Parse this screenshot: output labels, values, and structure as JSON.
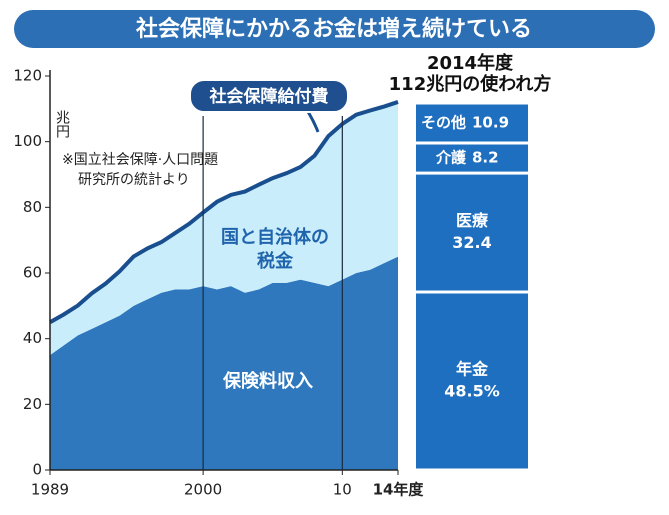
{
  "chart_data": [
    {
      "type": "stacked_area",
      "title": "社会保障にかかるお金は増え続けている",
      "y_label": "兆円",
      "annotation": "社会保障給付費",
      "note": [
        "※国立社会保障·人口問題",
        "研究所の統計より"
      ],
      "x": [
        1989,
        1990,
        1991,
        1992,
        1993,
        1994,
        1995,
        1996,
        1997,
        1998,
        1999,
        2000,
        2001,
        2002,
        2003,
        2004,
        2005,
        2006,
        2007,
        2008,
        2009,
        2010,
        2011,
        2012,
        2013,
        2014
      ],
      "series": [
        {
          "name": "保険料収入",
          "color": "#2f78bd",
          "values": [
            35,
            38,
            41,
            43,
            45,
            47,
            50,
            52,
            54,
            55,
            55,
            56,
            55,
            56,
            54,
            55,
            57,
            57,
            58,
            57,
            56,
            58,
            60,
            61,
            63,
            65
          ]
        },
        {
          "name": [
            "国と自治体の",
            "税金"
          ],
          "color": "#c9edfa",
          "values": [
            10,
            9.4,
            9.1,
            10.8,
            11.8,
            13.5,
            15,
            15.5,
            15.4,
            17.2,
            20,
            22.4,
            26.7,
            27.8,
            30.8,
            31.9,
            31.9,
            33.4,
            34.3,
            38.7,
            45.7,
            47.4,
            48.2,
            48.5,
            47.7,
            47.1
          ]
        }
      ],
      "xlim": [
        1989,
        2014
      ],
      "xticks": [
        1989,
        2000,
        {
          "value": 2010,
          "label": "10"
        },
        {
          "value": 2014,
          "label": "14年度"
        }
      ],
      "ylim": [
        0,
        120
      ],
      "yticks": [
        0,
        20,
        40,
        60,
        80,
        100,
        120
      ],
      "line_color": "#1a4f8f"
    },
    {
      "type": "stacked_bar",
      "title": [
        "2014年度",
        "112兆円の使われ方"
      ],
      "categories": [
        "年金",
        "医療",
        "介護",
        "その他"
      ],
      "values": [
        48.5,
        32.4,
        8.2,
        10.9
      ],
      "value_labels": [
        "48.5%",
        "32.4",
        "8.2",
        "10.9"
      ],
      "color": "#1f6fc0"
    }
  ]
}
